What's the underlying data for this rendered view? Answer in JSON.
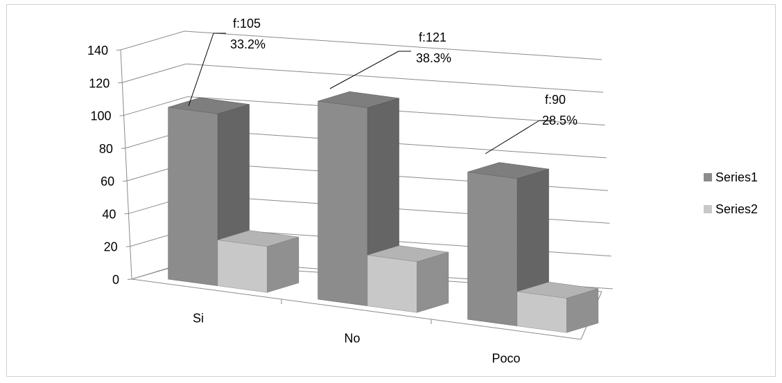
{
  "chart_data": {
    "type": "bar",
    "categories": [
      "Si",
      "No",
      "Poco"
    ],
    "series": [
      {
        "name": "Series1",
        "values": [
          105,
          121,
          90
        ],
        "color": "#8c8c8c"
      },
      {
        "name": "Series2",
        "values": [
          28,
          31,
          21
        ],
        "color": "#c8c8c8"
      }
    ],
    "ylim": [
      0,
      140
    ],
    "yticks": [
      "0",
      "20",
      "40",
      "60",
      "80",
      "100",
      "120",
      "140"
    ],
    "grid": true,
    "legend_position": "right",
    "annotations": [
      {
        "category": "Si",
        "line1": "f:105",
        "line2": "33.2%"
      },
      {
        "category": "No",
        "line1": "f:121",
        "line2": "38.3%"
      },
      {
        "category": "Poco",
        "line1": "f:90",
        "line2": "28.5%"
      }
    ]
  }
}
